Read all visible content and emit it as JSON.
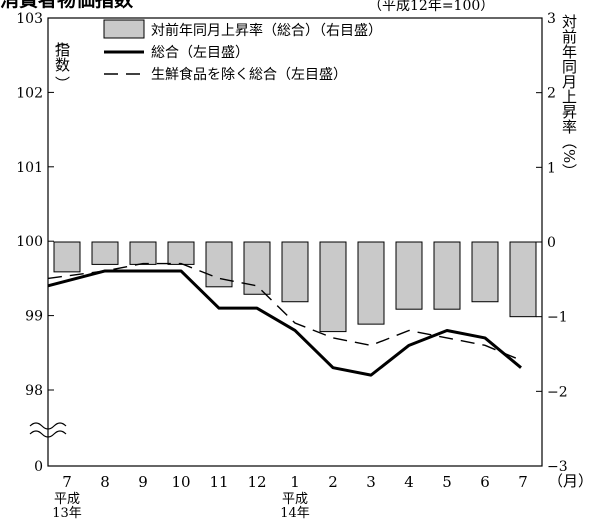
{
  "chart_data": {
    "type": "bar+line",
    "title": "消費者物価指数",
    "base_note": "（平成12年=100）",
    "categories": [
      "7",
      "8",
      "9",
      "10",
      "11",
      "12",
      "1",
      "2",
      "3",
      "4",
      "5",
      "6",
      "7"
    ],
    "x_unit": "（月）",
    "year_labels": [
      {
        "text": "平成13年",
        "at_category_index": 0
      },
      {
        "text": "平成14年",
        "at_category_index": 6
      }
    ],
    "left_axis": {
      "label": "指数",
      "range": [
        98,
        103
      ],
      "ticks": [
        "103",
        "102",
        "101",
        "100",
        "99",
        "98",
        "0"
      ],
      "broken": true
    },
    "right_axis": {
      "label": "対前年同月上昇率（%）",
      "range": [
        -3,
        3
      ],
      "ticks": [
        "3",
        "2",
        "1",
        "0",
        "−1",
        "−2",
        "−3"
      ]
    },
    "legend": [
      {
        "label": "対前年同月上昇率（総合）（右目盛）",
        "style": "gray-bar"
      },
      {
        "label": "総合（左目盛）",
        "style": "solid-line"
      },
      {
        "label": "生鮮食品を除く総合（左目盛）",
        "style": "dashed-line"
      }
    ],
    "series": [
      {
        "name": "対前年同月上昇率（総合）（右目盛）",
        "axis": "right",
        "kind": "bar",
        "values": [
          -0.4,
          -0.3,
          -0.3,
          -0.3,
          -0.6,
          -0.7,
          -0.8,
          -1.2,
          -1.1,
          -0.9,
          -0.9,
          -0.8,
          -1.0
        ]
      },
      {
        "name": "総合（左目盛）",
        "axis": "left",
        "kind": "line",
        "values": [
          99.4,
          99.6,
          99.6,
          99.6,
          99.1,
          99.1,
          98.8,
          98.3,
          98.2,
          98.6,
          98.8,
          98.7,
          98.3
        ]
      },
      {
        "name": "生鮮食品を除く総合（左目盛）",
        "axis": "left",
        "kind": "dashed-line",
        "values": [
          99.5,
          99.6,
          99.7,
          99.7,
          99.5,
          99.4,
          98.9,
          98.7,
          98.6,
          98.8,
          98.7,
          98.6,
          98.4
        ]
      }
    ],
    "colors": {
      "bar_fill": "#c9c9c9",
      "ink": "#000000"
    }
  }
}
